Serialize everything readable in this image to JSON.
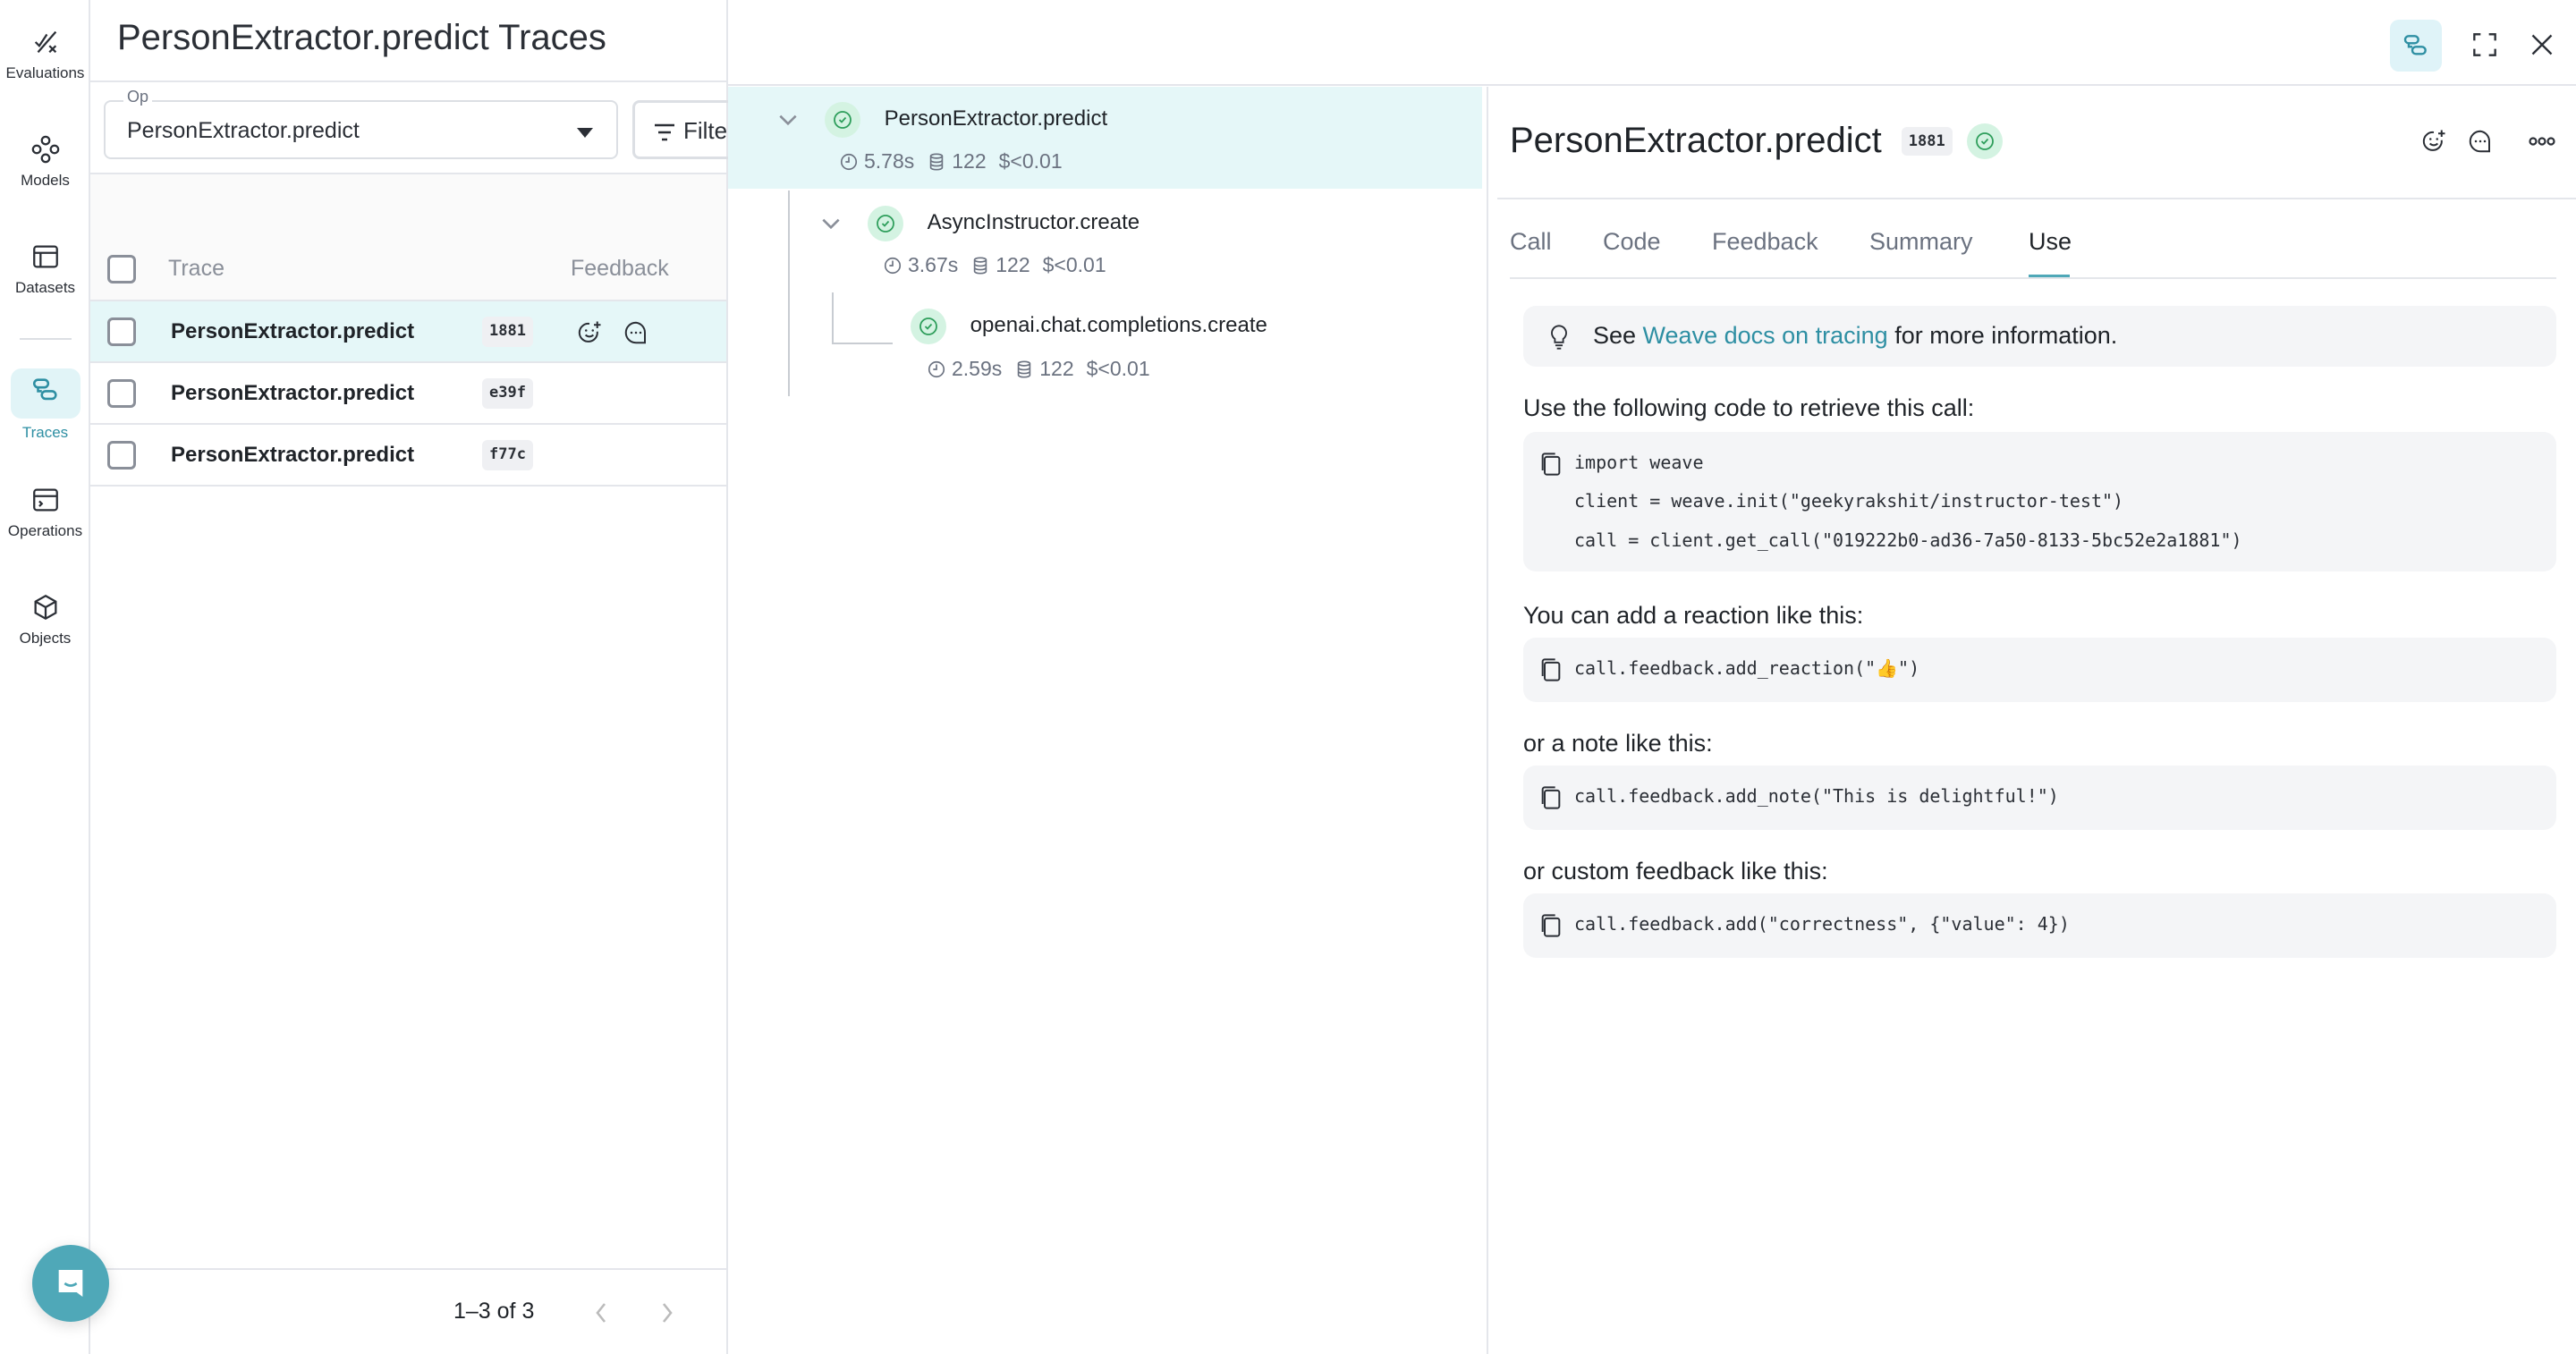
{
  "nav": {
    "items": [
      {
        "label": "Evaluations",
        "icon": "evaluations-icon"
      },
      {
        "label": "Models",
        "icon": "models-icon"
      },
      {
        "label": "Datasets",
        "icon": "datasets-icon"
      },
      {
        "label": "Traces",
        "icon": "traces-icon",
        "active": true
      },
      {
        "label": "Operations",
        "icon": "operations-icon"
      },
      {
        "label": "Objects",
        "icon": "objects-icon"
      }
    ]
  },
  "left": {
    "title": "PersonExtractor.predict Traces",
    "op_label": "Op",
    "op_value": "PersonExtractor.predict",
    "filter_label": "Filter",
    "columns": [
      "Trace",
      "Feedback"
    ],
    "rows": [
      {
        "name": "PersonExtractor.predict",
        "id": "1881",
        "selected": true
      },
      {
        "name": "PersonExtractor.predict",
        "id": "e39f"
      },
      {
        "name": "PersonExtractor.predict",
        "id": "f77c"
      }
    ],
    "pagination": "1–3 of 3"
  },
  "tree": [
    {
      "name": "PersonExtractor.predict",
      "duration": "5.78s",
      "tokens": "122",
      "cost": "$<0.01",
      "selected": true
    },
    {
      "name": "AsyncInstructor.create",
      "duration": "3.67s",
      "tokens": "122",
      "cost": "$<0.01"
    },
    {
      "name": "openai.chat.completions.create",
      "duration": "2.59s",
      "tokens": "122",
      "cost": "$<0.01"
    }
  ],
  "detail": {
    "title": "PersonExtractor.predict",
    "id": "1881",
    "status": "success",
    "tabs": [
      "Call",
      "Code",
      "Feedback",
      "Summary",
      "Use"
    ],
    "active_tab": "Use",
    "info_prefix": "See ",
    "info_link": "Weave docs on tracing",
    "info_suffix": " for more information.",
    "retrieve_label": "Use the following code to retrieve this call:",
    "retrieve_code": [
      "import weave",
      "client = weave.init(\"geekyrakshit/instructor-test\")",
      "call = client.get_call(\"019222b0-ad36-7a50-8133-5bc52e2a1881\")"
    ],
    "reaction_label": "You can add a reaction like this:",
    "reaction_code": "call.feedback.add_reaction(\"👍\")",
    "note_label": "or a note like this:",
    "note_code": "call.feedback.add_note(\"This is delightful!\")",
    "custom_label": "or custom feedback like this:",
    "custom_code": "call.feedback.add(\"correctness\", {\"value\": 4})"
  },
  "colors": {
    "accent": "#2e8fa3",
    "selected_row": "#e5f7f8",
    "success": "#2e9e5b",
    "intercom": "#4fa8b8"
  }
}
